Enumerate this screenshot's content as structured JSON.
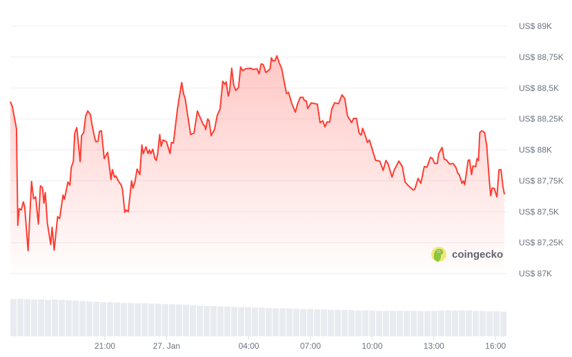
{
  "chart_data": {
    "type": "area",
    "title": "",
    "xlabel": "",
    "ylabel": "",
    "ylim": [
      87000,
      89000
    ],
    "grid": true,
    "legend": "none",
    "line_color": "#ff3b30",
    "fill_color": "#ff3b30",
    "volume_color": "#e8ecf0",
    "y_ticks": [
      {
        "value": 89000,
        "label": "US$ 89K"
      },
      {
        "value": 88750,
        "label": "US$ 88,75K"
      },
      {
        "value": 88500,
        "label": "US$ 88,5K"
      },
      {
        "value": 88250,
        "label": "US$ 88,25K"
      },
      {
        "value": 88000,
        "label": "US$ 88K"
      },
      {
        "value": 87750,
        "label": "US$ 87,75K"
      },
      {
        "value": 87500,
        "label": "US$ 87,5K"
      },
      {
        "value": 87250,
        "label": "US$ 87,25K"
      },
      {
        "value": 87000,
        "label": "US$ 87K"
      }
    ],
    "x_ticks": [
      {
        "time": "26 Jan 21:00",
        "label": "21:00"
      },
      {
        "time": "27 Jan 00:00",
        "label": "27. Jan"
      },
      {
        "time": "27 Jan 04:00",
        "label": "04:00"
      },
      {
        "time": "27 Jan 07:00",
        "label": "07:00"
      },
      {
        "time": "27 Jan 10:00",
        "label": "10:00"
      },
      {
        "time": "27 Jan 13:00",
        "label": "13:00"
      },
      {
        "time": "27 Jan 16:00",
        "label": "16:00"
      }
    ],
    "points": [
      [
        "26 Jan 16:24",
        88390
      ],
      [
        "26 Jan 16:30",
        88350
      ],
      [
        "26 Jan 16:42",
        88170
      ],
      [
        "26 Jan 16:46",
        87390
      ],
      [
        "26 Jan 16:50",
        87525
      ],
      [
        "26 Jan 16:56",
        87515
      ],
      [
        "26 Jan 17:02",
        87580
      ],
      [
        "26 Jan 17:06",
        87540
      ],
      [
        "26 Jan 17:16",
        87185
      ],
      [
        "26 Jan 17:26",
        87745
      ],
      [
        "26 Jan 17:32",
        87605
      ],
      [
        "26 Jan 17:38",
        87620
      ],
      [
        "26 Jan 17:46",
        87400
      ],
      [
        "26 Jan 17:52",
        87710
      ],
      [
        "26 Jan 17:58",
        87695
      ],
      [
        "26 Jan 18:02",
        87570
      ],
      [
        "26 Jan 18:06",
        87655
      ],
      [
        "26 Jan 18:12",
        87410
      ],
      [
        "26 Jan 18:22",
        87235
      ],
      [
        "26 Jan 18:26",
        87375
      ],
      [
        "26 Jan 18:32",
        87190
      ],
      [
        "26 Jan 18:42",
        87460
      ],
      [
        "26 Jan 18:48",
        87445
      ],
      [
        "26 Jan 18:58",
        87635
      ],
      [
        "26 Jan 19:02",
        87600
      ],
      [
        "26 Jan 19:12",
        87740
      ],
      [
        "26 Jan 19:18",
        87715
      ],
      [
        "26 Jan 19:22",
        87860
      ],
      [
        "26 Jan 19:28",
        87905
      ],
      [
        "26 Jan 19:32",
        88135
      ],
      [
        "26 Jan 19:38",
        88180
      ],
      [
        "26 Jan 19:48",
        87905
      ],
      [
        "26 Jan 19:52",
        88115
      ],
      [
        "26 Jan 19:58",
        88140
      ],
      [
        "26 Jan 20:04",
        88275
      ],
      [
        "26 Jan 20:10",
        88315
      ],
      [
        "26 Jan 20:18",
        88285
      ],
      [
        "26 Jan 20:22",
        88210
      ],
      [
        "26 Jan 20:30",
        88100
      ],
      [
        "26 Jan 20:34",
        88065
      ],
      [
        "26 Jan 20:40",
        88070
      ],
      [
        "26 Jan 20:44",
        88150
      ],
      [
        "26 Jan 20:50",
        88155
      ],
      [
        "26 Jan 20:58",
        87930
      ],
      [
        "26 Jan 21:08",
        87980
      ],
      [
        "26 Jan 21:18",
        87760
      ],
      [
        "26 Jan 21:22",
        87840
      ],
      [
        "26 Jan 21:28",
        87780
      ],
      [
        "26 Jan 21:32",
        87790
      ],
      [
        "26 Jan 21:40",
        87745
      ],
      [
        "26 Jan 21:48",
        87715
      ],
      [
        "26 Jan 21:52",
        87670
      ],
      [
        "26 Jan 21:58",
        87495
      ],
      [
        "26 Jan 22:02",
        87515
      ],
      [
        "26 Jan 22:08",
        87500
      ],
      [
        "26 Jan 22:18",
        87750
      ],
      [
        "26 Jan 22:22",
        87690
      ],
      [
        "26 Jan 22:28",
        87745
      ],
      [
        "26 Jan 22:34",
        87845
      ],
      [
        "26 Jan 22:42",
        87800
      ],
      [
        "26 Jan 22:48",
        88040
      ],
      [
        "26 Jan 22:52",
        87970
      ],
      [
        "26 Jan 23:00",
        88025
      ],
      [
        "26 Jan 23:06",
        87970
      ],
      [
        "26 Jan 23:10",
        88000
      ],
      [
        "26 Jan 23:14",
        87970
      ],
      [
        "26 Jan 23:20",
        88005
      ],
      [
        "26 Jan 23:26",
        87930
      ],
      [
        "26 Jan 23:30",
        87915
      ],
      [
        "26 Jan 23:34",
        87970
      ],
      [
        "26 Jan 23:40",
        88125
      ],
      [
        "26 Jan 23:44",
        88030
      ],
      [
        "26 Jan 23:50",
        88080
      ],
      [
        "27 Jan 00:00",
        88065
      ],
      [
        "27 Jan 00:10",
        87970
      ],
      [
        "27 Jan 00:14",
        88060
      ],
      [
        "27 Jan 00:20",
        88055
      ],
      [
        "27 Jan 00:32",
        88335
      ],
      [
        "27 Jan 00:44",
        88545
      ],
      [
        "27 Jan 00:50",
        88450
      ],
      [
        "27 Jan 00:54",
        88420
      ],
      [
        "27 Jan 01:10",
        88125
      ],
      [
        "27 Jan 01:20",
        88135
      ],
      [
        "27 Jan 01:30",
        88315
      ],
      [
        "27 Jan 01:36",
        88275
      ],
      [
        "27 Jan 01:46",
        88210
      ],
      [
        "27 Jan 01:52",
        88190
      ],
      [
        "27 Jan 01:54",
        88165
      ],
      [
        "27 Jan 02:00",
        88250
      ],
      [
        "27 Jan 02:04",
        88235
      ],
      [
        "27 Jan 02:10",
        88115
      ],
      [
        "27 Jan 02:20",
        88165
      ],
      [
        "27 Jan 02:28",
        88280
      ],
      [
        "27 Jan 02:36",
        88330
      ],
      [
        "27 Jan 02:44",
        88555
      ],
      [
        "27 Jan 02:50",
        88530
      ],
      [
        "27 Jan 02:54",
        88550
      ],
      [
        "27 Jan 03:00",
        88435
      ],
      [
        "27 Jan 03:04",
        88475
      ],
      [
        "27 Jan 03:10",
        88660
      ],
      [
        "27 Jan 03:16",
        88525
      ],
      [
        "27 Jan 03:22",
        88480
      ],
      [
        "27 Jan 03:30",
        88505
      ],
      [
        "27 Jan 03:36",
        88670
      ],
      [
        "27 Jan 03:42",
        88640
      ],
      [
        "27 Jan 03:50",
        88655
      ],
      [
        "27 Jan 04:06",
        88660
      ],
      [
        "27 Jan 04:12",
        88650
      ],
      [
        "27 Jan 04:24",
        88655
      ],
      [
        "27 Jan 04:30",
        88615
      ],
      [
        "27 Jan 04:36",
        88695
      ],
      [
        "27 Jan 04:42",
        88690
      ],
      [
        "27 Jan 04:50",
        88625
      ],
      [
        "27 Jan 05:02",
        88655
      ],
      [
        "27 Jan 05:06",
        88745
      ],
      [
        "27 Jan 05:10",
        88720
      ],
      [
        "27 Jan 05:16",
        88720
      ],
      [
        "27 Jan 05:22",
        88760
      ],
      [
        "27 Jan 05:28",
        88710
      ],
      [
        "27 Jan 05:36",
        88655
      ],
      [
        "27 Jan 05:50",
        88455
      ],
      [
        "27 Jan 05:56",
        88465
      ],
      [
        "27 Jan 06:06",
        88370
      ],
      [
        "27 Jan 06:16",
        88305
      ],
      [
        "27 Jan 06:22",
        88370
      ],
      [
        "27 Jan 06:30",
        88425
      ],
      [
        "27 Jan 06:38",
        88425
      ],
      [
        "27 Jan 06:42",
        88400
      ],
      [
        "27 Jan 06:48",
        88395
      ],
      [
        "27 Jan 06:52",
        88335
      ],
      [
        "27 Jan 07:02",
        88380
      ],
      [
        "27 Jan 07:20",
        88370
      ],
      [
        "27 Jan 07:28",
        88220
      ],
      [
        "27 Jan 07:36",
        88235
      ],
      [
        "27 Jan 07:42",
        88185
      ],
      [
        "27 Jan 07:48",
        88225
      ],
      [
        "27 Jan 07:56",
        88225
      ],
      [
        "27 Jan 08:02",
        88330
      ],
      [
        "27 Jan 08:10",
        88380
      ],
      [
        "27 Jan 08:22",
        88375
      ],
      [
        "27 Jan 08:32",
        88445
      ],
      [
        "27 Jan 08:40",
        88415
      ],
      [
        "27 Jan 08:48",
        88275
      ],
      [
        "27 Jan 09:00",
        88220
      ],
      [
        "27 Jan 09:06",
        88255
      ],
      [
        "27 Jan 09:14",
        88255
      ],
      [
        "27 Jan 09:22",
        88135
      ],
      [
        "27 Jan 09:28",
        88120
      ],
      [
        "27 Jan 09:32",
        88175
      ],
      [
        "27 Jan 09:40",
        88115
      ],
      [
        "27 Jan 09:46",
        88060
      ],
      [
        "27 Jan 09:52",
        88080
      ],
      [
        "27 Jan 10:10",
        87915
      ],
      [
        "27 Jan 10:22",
        87910
      ],
      [
        "27 Jan 10:32",
        87835
      ],
      [
        "27 Jan 10:40",
        87915
      ],
      [
        "27 Jan 10:46",
        87890
      ],
      [
        "27 Jan 10:58",
        87780
      ],
      [
        "27 Jan 11:04",
        87835
      ],
      [
        "27 Jan 11:18",
        87910
      ],
      [
        "27 Jan 11:28",
        87865
      ],
      [
        "27 Jan 11:36",
        87740
      ],
      [
        "27 Jan 11:44",
        87715
      ],
      [
        "27 Jan 12:00",
        87675
      ],
      [
        "27 Jan 12:04",
        87680
      ],
      [
        "27 Jan 12:14",
        87770
      ],
      [
        "27 Jan 12:22",
        87730
      ],
      [
        "27 Jan 12:32",
        87865
      ],
      [
        "27 Jan 12:40",
        87860
      ],
      [
        "27 Jan 12:50",
        87940
      ],
      [
        "27 Jan 12:56",
        87930
      ],
      [
        "27 Jan 13:02",
        87890
      ],
      [
        "27 Jan 13:10",
        87890
      ],
      [
        "27 Jan 13:14",
        87970
      ],
      [
        "27 Jan 13:24",
        88020
      ],
      [
        "27 Jan 13:30",
        87925
      ],
      [
        "27 Jan 13:36",
        87920
      ],
      [
        "27 Jan 13:46",
        87885
      ],
      [
        "27 Jan 13:56",
        87890
      ],
      [
        "27 Jan 14:04",
        87860
      ],
      [
        "27 Jan 14:10",
        87810
      ],
      [
        "27 Jan 14:14",
        87800
      ],
      [
        "27 Jan 14:22",
        87730
      ],
      [
        "27 Jan 14:26",
        87750
      ],
      [
        "27 Jan 14:30",
        87720
      ],
      [
        "27 Jan 14:40",
        87915
      ],
      [
        "27 Jan 14:44",
        87920
      ],
      [
        "27 Jan 14:50",
        87800
      ],
      [
        "27 Jan 14:54",
        87870
      ],
      [
        "27 Jan 15:02",
        87865
      ],
      [
        "27 Jan 15:06",
        87930
      ],
      [
        "27 Jan 15:10",
        87915
      ],
      [
        "27 Jan 15:14",
        88140
      ],
      [
        "27 Jan 15:20",
        88155
      ],
      [
        "27 Jan 15:28",
        88140
      ],
      [
        "27 Jan 15:34",
        88040
      ],
      [
        "27 Jan 15:42",
        87745
      ],
      [
        "27 Jan 15:46",
        87630
      ],
      [
        "27 Jan 15:50",
        87690
      ],
      [
        "27 Jan 15:56",
        87690
      ],
      [
        "27 Jan 16:04",
        87620
      ],
      [
        "27 Jan 16:10",
        87840
      ],
      [
        "27 Jan 16:16",
        87840
      ],
      [
        "27 Jan 16:22",
        87695
      ],
      [
        "27 Jan 16:26",
        87640
      ]
    ],
    "volume_relative": [
      0.98,
      0.99,
      0.98,
      0.97,
      0.97,
      0.96,
      0.97,
      0.96,
      0.95,
      0.94,
      0.93,
      0.92,
      0.91,
      0.9,
      0.9,
      0.89,
      0.88,
      0.88,
      0.87,
      0.87,
      0.86,
      0.86,
      0.85,
      0.85,
      0.84,
      0.83,
      0.82,
      0.81,
      0.8,
      0.8,
      0.79,
      0.79,
      0.78,
      0.77,
      0.77,
      0.76,
      0.76,
      0.75,
      0.74,
      0.74,
      0.73,
      0.73,
      0.72,
      0.72,
      0.71,
      0.71,
      0.7,
      0.7,
      0.69,
      0.69,
      0.68,
      0.68,
      0.68,
      0.67,
      0.67,
      0.67,
      0.67,
      0.67,
      0.67,
      0.67,
      0.67,
      0.67,
      0.68,
      0.68,
      0.68,
      0.68,
      0.68,
      0.67,
      0.67,
      0.66,
      0.66,
      0.65
    ]
  },
  "watermark": {
    "text": "coingecko",
    "icon": "gecko-logo-icon"
  }
}
